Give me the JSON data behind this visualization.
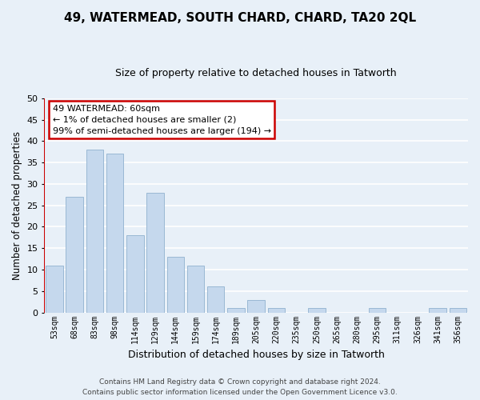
{
  "title": "49, WATERMEAD, SOUTH CHARD, CHARD, TA20 2QL",
  "subtitle": "Size of property relative to detached houses in Tatworth",
  "xlabel": "Distribution of detached houses by size in Tatworth",
  "ylabel": "Number of detached properties",
  "categories": [
    "53sqm",
    "68sqm",
    "83sqm",
    "98sqm",
    "114sqm",
    "129sqm",
    "144sqm",
    "159sqm",
    "174sqm",
    "189sqm",
    "205sqm",
    "220sqm",
    "235sqm",
    "250sqm",
    "265sqm",
    "280sqm",
    "295sqm",
    "311sqm",
    "326sqm",
    "341sqm",
    "356sqm"
  ],
  "values": [
    11,
    27,
    38,
    37,
    18,
    28,
    13,
    11,
    6,
    1,
    3,
    1,
    0,
    1,
    0,
    0,
    1,
    0,
    0,
    1,
    1
  ],
  "bar_color": "#c5d8ed",
  "bar_edge_color": "#9ab8d4",
  "bg_color": "#e8f0f8",
  "grid_color": "#ffffff",
  "annotation_box_text": "49 WATERMEAD: 60sqm\n← 1% of detached houses are smaller (2)\n99% of semi-detached houses are larger (194) →",
  "annotation_box_color": "#cc0000",
  "annotation_fill": "#ffffff",
  "ylim": [
    0,
    50
  ],
  "yticks": [
    0,
    5,
    10,
    15,
    20,
    25,
    30,
    35,
    40,
    45,
    50
  ],
  "footer_line1": "Contains HM Land Registry data © Crown copyright and database right 2024.",
  "footer_line2": "Contains public sector information licensed under the Open Government Licence v3.0.",
  "property_bar_color": "#cc0000",
  "title_fontsize": 11,
  "subtitle_fontsize": 9,
  "ylabel_fontsize": 8.5,
  "xlabel_fontsize": 9,
  "tick_fontsize": 7,
  "footer_fontsize": 6.5
}
